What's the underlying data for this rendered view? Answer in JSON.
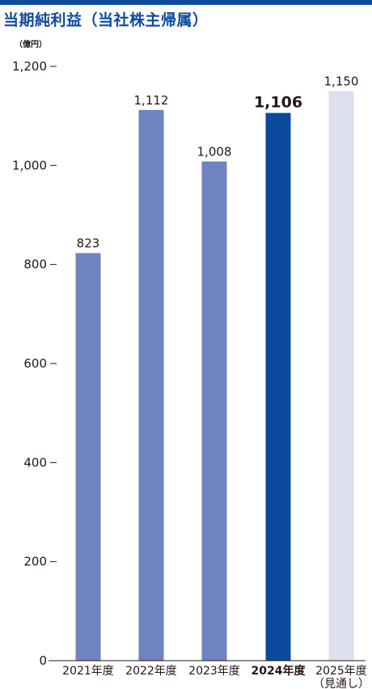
{
  "title": "当期純利益（当社株主帰属）",
  "unit": "（億円）",
  "colors": {
    "title": "#0e4a9c",
    "rule": "#0e4a9c",
    "bar_normal": "#6e83bf",
    "bar_highlight": "#0b4a9c",
    "bar_forecast": "#dcdff0"
  },
  "chart_data": {
    "type": "bar",
    "title": "当期純利益（当社株主帰属）",
    "ylabel": "（億円）",
    "xlabel": "",
    "ylim": [
      0,
      1200
    ],
    "yticks": [
      0,
      200,
      400,
      600,
      800,
      1000,
      1200
    ],
    "ytick_labels": [
      "0",
      "200",
      "400",
      "600",
      "800",
      "1,000",
      "1,200"
    ],
    "grid": false,
    "categories": [
      "2021年度",
      "2022年度",
      "2023年度",
      "2024年度",
      "2025年度"
    ],
    "category_sublabels": [
      "",
      "",
      "",
      "",
      "（見通し）"
    ],
    "values": [
      823,
      1112,
      1008,
      1106,
      1150
    ],
    "value_labels": [
      "823",
      "1,112",
      "1,008",
      "1,106",
      "1,150"
    ],
    "highlight_index": 3,
    "forecast_index": 4
  }
}
